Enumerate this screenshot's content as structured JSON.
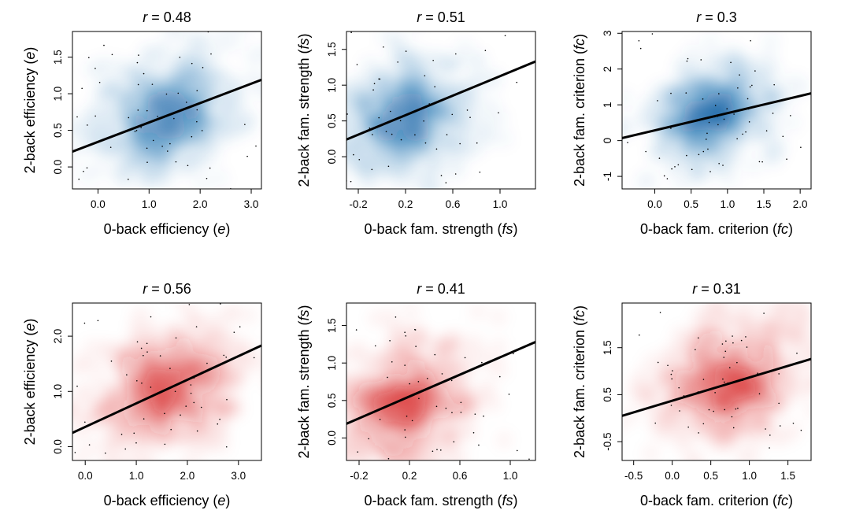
{
  "colors": {
    "blue": "#1565a8",
    "red": "#d42020",
    "line": "#000000",
    "frame": "#000000"
  },
  "chart_data": [
    {
      "type": "scatter",
      "density_color": "blue",
      "title_symbol": "r",
      "title_value": "0.48",
      "xlabel": "0-back efficiency",
      "xlabel_symbol": "e",
      "ylabel": "2-back efficiency",
      "ylabel_symbol": "e",
      "xlim": [
        -0.5,
        3.2
      ],
      "ylim": [
        -0.3,
        1.85
      ],
      "x_ticks": [
        0.0,
        1.0,
        2.0,
        3.0
      ],
      "x_tick_labels": [
        "0.0",
        "1.0",
        "2.0",
        "3.0"
      ],
      "y_ticks": [
        0.0,
        0.5,
        1.0,
        1.5
      ],
      "y_tick_labels": [
        "0.0",
        "0.5",
        "1.0",
        "1.5"
      ],
      "regression_line": [
        [
          -0.5,
          0.21
        ],
        [
          3.2,
          1.19
        ]
      ],
      "density_center": [
        1.3,
        0.72
      ],
      "density_spread": [
        0.75,
        0.42
      ],
      "grid": false
    },
    {
      "type": "scatter",
      "density_color": "blue",
      "title_symbol": "r",
      "title_value": "0.51",
      "xlabel": "0-back fam. strength",
      "xlabel_symbol": "fs",
      "ylabel": "2-back fam. strength",
      "ylabel_symbol": "fs",
      "xlim": [
        -0.3,
        1.3
      ],
      "ylim": [
        -0.45,
        1.75
      ],
      "x_ticks": [
        -0.2,
        0.2,
        0.6,
        1.0
      ],
      "x_tick_labels": [
        "-0.2",
        "0.2",
        "0.6",
        "1.0"
      ],
      "y_ticks": [
        0.0,
        0.5,
        1.0,
        1.5
      ],
      "y_tick_labels": [
        "0.0",
        "0.5",
        "1.0",
        "1.5"
      ],
      "regression_line": [
        [
          -0.3,
          0.24
        ],
        [
          1.3,
          1.33
        ]
      ],
      "density_center": [
        0.2,
        0.55
      ],
      "density_spread": [
        0.3,
        0.45
      ],
      "grid": false
    },
    {
      "type": "scatter",
      "density_color": "blue",
      "title_symbol": "r",
      "title_value": "0.3",
      "xlabel": "0-back fam. criterion",
      "xlabel_symbol": "fc",
      "ylabel": "2-back fam. criterion",
      "ylabel_symbol": "fc",
      "xlim": [
        -0.45,
        2.15
      ],
      "ylim": [
        -1.35,
        3.05
      ],
      "x_ticks": [
        0.0,
        0.5,
        1.0,
        1.5,
        2.0
      ],
      "x_tick_labels": [
        "0.0",
        "0.5",
        "1.0",
        "1.5",
        "2.0"
      ],
      "y_ticks": [
        -1,
        0,
        1,
        2,
        3
      ],
      "y_tick_labels": [
        "-1",
        "0",
        "1",
        "2",
        "3"
      ],
      "regression_line": [
        [
          -0.45,
          0.07
        ],
        [
          2.15,
          1.32
        ]
      ],
      "density_center": [
        0.8,
        0.75
      ],
      "density_spread": [
        0.45,
        0.75
      ],
      "grid": false
    },
    {
      "type": "scatter",
      "density_color": "red",
      "title_symbol": "r",
      "title_value": "0.56",
      "xlabel": "0-back efficiency",
      "xlabel_symbol": "e",
      "ylabel": "2-back efficiency",
      "ylabel_symbol": "e",
      "xlim": [
        -0.25,
        3.45
      ],
      "ylim": [
        -0.25,
        2.6
      ],
      "x_ticks": [
        0.0,
        1.0,
        2.0,
        3.0
      ],
      "x_tick_labels": [
        "0.0",
        "1.0",
        "2.0",
        "3.0"
      ],
      "y_ticks": [
        0.0,
        1.0,
        2.0
      ],
      "y_tick_labels": [
        "0.0",
        "1.0",
        "2.0"
      ],
      "regression_line": [
        [
          -0.25,
          0.25
        ],
        [
          3.45,
          1.83
        ]
      ],
      "density_center": [
        1.65,
        1.05
      ],
      "density_spread": [
        0.8,
        0.6
      ],
      "grid": false
    },
    {
      "type": "scatter",
      "density_color": "red",
      "title_symbol": "r",
      "title_value": "0.41",
      "xlabel": "0-back fam. strength",
      "xlabel_symbol": "fs",
      "ylabel": "2-back fam. strength",
      "ylabel_symbol": "fs",
      "xlim": [
        -0.3,
        1.2
      ],
      "ylim": [
        -0.3,
        1.8
      ],
      "x_ticks": [
        -0.2,
        0.2,
        0.6,
        1.0
      ],
      "x_tick_labels": [
        "-0.2",
        "0.2",
        "0.6",
        "1.0"
      ],
      "y_ticks": [
        0.0,
        0.5,
        1.0,
        1.5
      ],
      "y_tick_labels": [
        "0.0",
        "0.5",
        "1.0",
        "1.5"
      ],
      "regression_line": [
        [
          -0.3,
          0.19
        ],
        [
          1.2,
          1.28
        ]
      ],
      "density_center": [
        0.15,
        0.45
      ],
      "density_spread": [
        0.28,
        0.42
      ],
      "grid": false
    },
    {
      "type": "scatter",
      "density_color": "red",
      "title_symbol": "r",
      "title_value": "0.31",
      "xlabel": "0-back fam. criterion",
      "xlabel_symbol": "fc",
      "ylabel": "2-back fam. criterion",
      "ylabel_symbol": "fc",
      "xlim": [
        -0.65,
        1.8
      ],
      "ylim": [
        -0.9,
        2.45
      ],
      "x_ticks": [
        -0.5,
        0.0,
        0.5,
        1.0,
        1.5
      ],
      "x_tick_labels": [
        "-0.5",
        "0.0",
        "0.5",
        "1.0",
        "1.5"
      ],
      "y_ticks": [
        -0.5,
        0.5,
        1.5
      ],
      "y_tick_labels": [
        "-0.5",
        "0.5",
        "1.5"
      ],
      "regression_line": [
        [
          -0.65,
          0.05
        ],
        [
          1.8,
          1.26
        ]
      ],
      "density_center": [
        0.7,
        0.75
      ],
      "density_spread": [
        0.5,
        0.65
      ],
      "grid": false
    }
  ]
}
